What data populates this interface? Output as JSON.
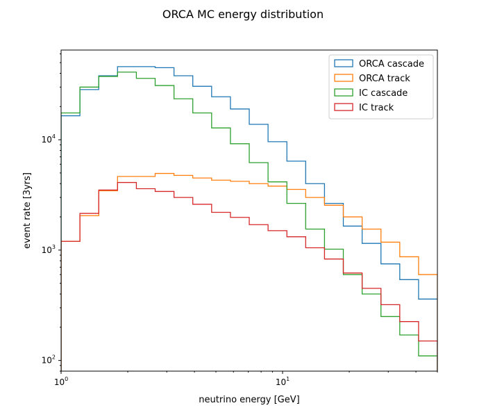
{
  "chart_data": {
    "type": "step-histogram",
    "title": "ORCA MC energy distribution",
    "xlabel": "neutrino energy [GeV]",
    "ylabel": "event rate [3yrs]",
    "xscale": "log",
    "yscale": "log",
    "xlim": [
      1,
      50
    ],
    "ylim": [
      80,
      65000
    ],
    "grid": false,
    "legend_position": "top-right",
    "x_ticks": [
      {
        "value": 1,
        "label": "10",
        "exp": "0"
      },
      {
        "value": 10,
        "label": "10",
        "exp": "1"
      }
    ],
    "y_ticks": [
      {
        "value": 100,
        "label": "10",
        "exp": "2"
      },
      {
        "value": 1000,
        "label": "10",
        "exp": "3"
      },
      {
        "value": 10000,
        "label": "10",
        "exp": "4"
      }
    ],
    "bin_edges": [
      1.0,
      1.216,
      1.479,
      1.798,
      2.187,
      2.659,
      3.234,
      3.932,
      4.782,
      5.815,
      7.071,
      8.599,
      10.457,
      12.716,
      15.463,
      18.803,
      22.865,
      27.805,
      33.812,
      41.117,
      50.0
    ],
    "series": [
      {
        "name": "ORCA cascade",
        "color": "#1f77b4",
        "values": [
          16500,
          28500,
          38000,
          46000,
          46000,
          45000,
          38000,
          30500,
          24500,
          19000,
          13800,
          9600,
          6400,
          4000,
          2650,
          1650,
          1150,
          750,
          540,
          360
        ]
      },
      {
        "name": "ORCA track",
        "color": "#ff7f0e",
        "values": [
          1200,
          2050,
          3450,
          4650,
          4650,
          4950,
          4750,
          4500,
          4300,
          4200,
          4000,
          3800,
          3550,
          3000,
          2550,
          2000,
          1550,
          1180,
          870,
          600
        ]
      },
      {
        "name": "IC cascade",
        "color": "#2ca02c",
        "values": [
          17500,
          30000,
          37500,
          41000,
          36000,
          31000,
          23500,
          17500,
          12800,
          9200,
          6200,
          4150,
          2650,
          1550,
          1020,
          600,
          400,
          250,
          170,
          110
        ]
      },
      {
        "name": "IC track",
        "color": "#d62728",
        "values": [
          1200,
          2150,
          3500,
          4100,
          3600,
          3400,
          3000,
          2600,
          2200,
          1980,
          1700,
          1500,
          1320,
          1050,
          830,
          620,
          450,
          320,
          225,
          150
        ]
      }
    ]
  }
}
